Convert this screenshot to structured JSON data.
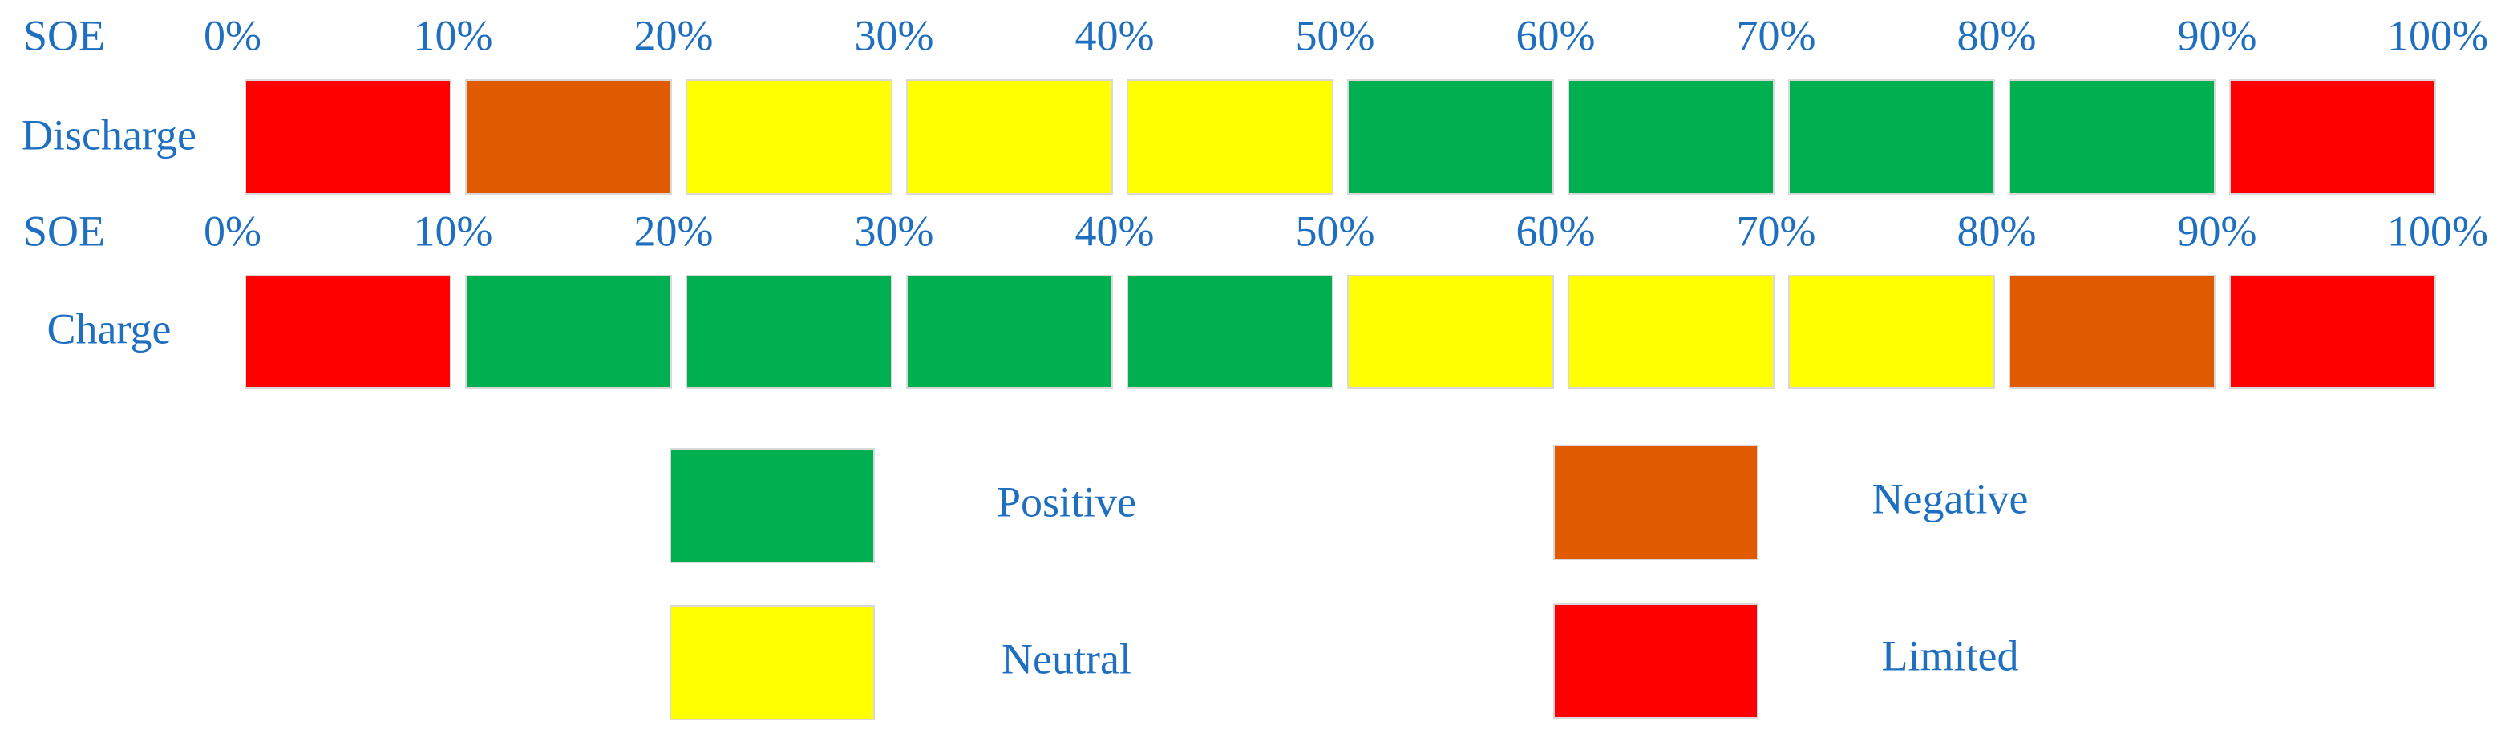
{
  "rows": [
    {
      "soe_label": "SOE",
      "ticks": [
        "0%",
        "10%",
        "20%",
        "30%",
        "40%",
        "50%",
        "60%",
        "70%",
        "80%",
        "90%",
        "100%"
      ],
      "label": "Discharge",
      "cells": [
        "Limited",
        "Negative",
        "Neutral",
        "Neutral",
        "Neutral",
        "Positive",
        "Positive",
        "Positive",
        "Positive",
        "Limited"
      ]
    },
    {
      "soe_label": "SOE",
      "ticks": [
        "0%",
        "10%",
        "20%",
        "30%",
        "40%",
        "50%",
        "60%",
        "70%",
        "80%",
        "90%",
        "100%"
      ],
      "label": "Charge",
      "cells": [
        "Limited",
        "Positive",
        "Positive",
        "Positive",
        "Positive",
        "Neutral",
        "Neutral",
        "Neutral",
        "Negative",
        "Limited"
      ]
    }
  ],
  "legend": [
    {
      "name": "Positive",
      "color": "#00b050"
    },
    {
      "name": "Neutral",
      "color": "#ffff00"
    },
    {
      "name": "Negative",
      "color": "#e05a00"
    },
    {
      "name": "Limited",
      "color": "#ff0000"
    }
  ]
}
